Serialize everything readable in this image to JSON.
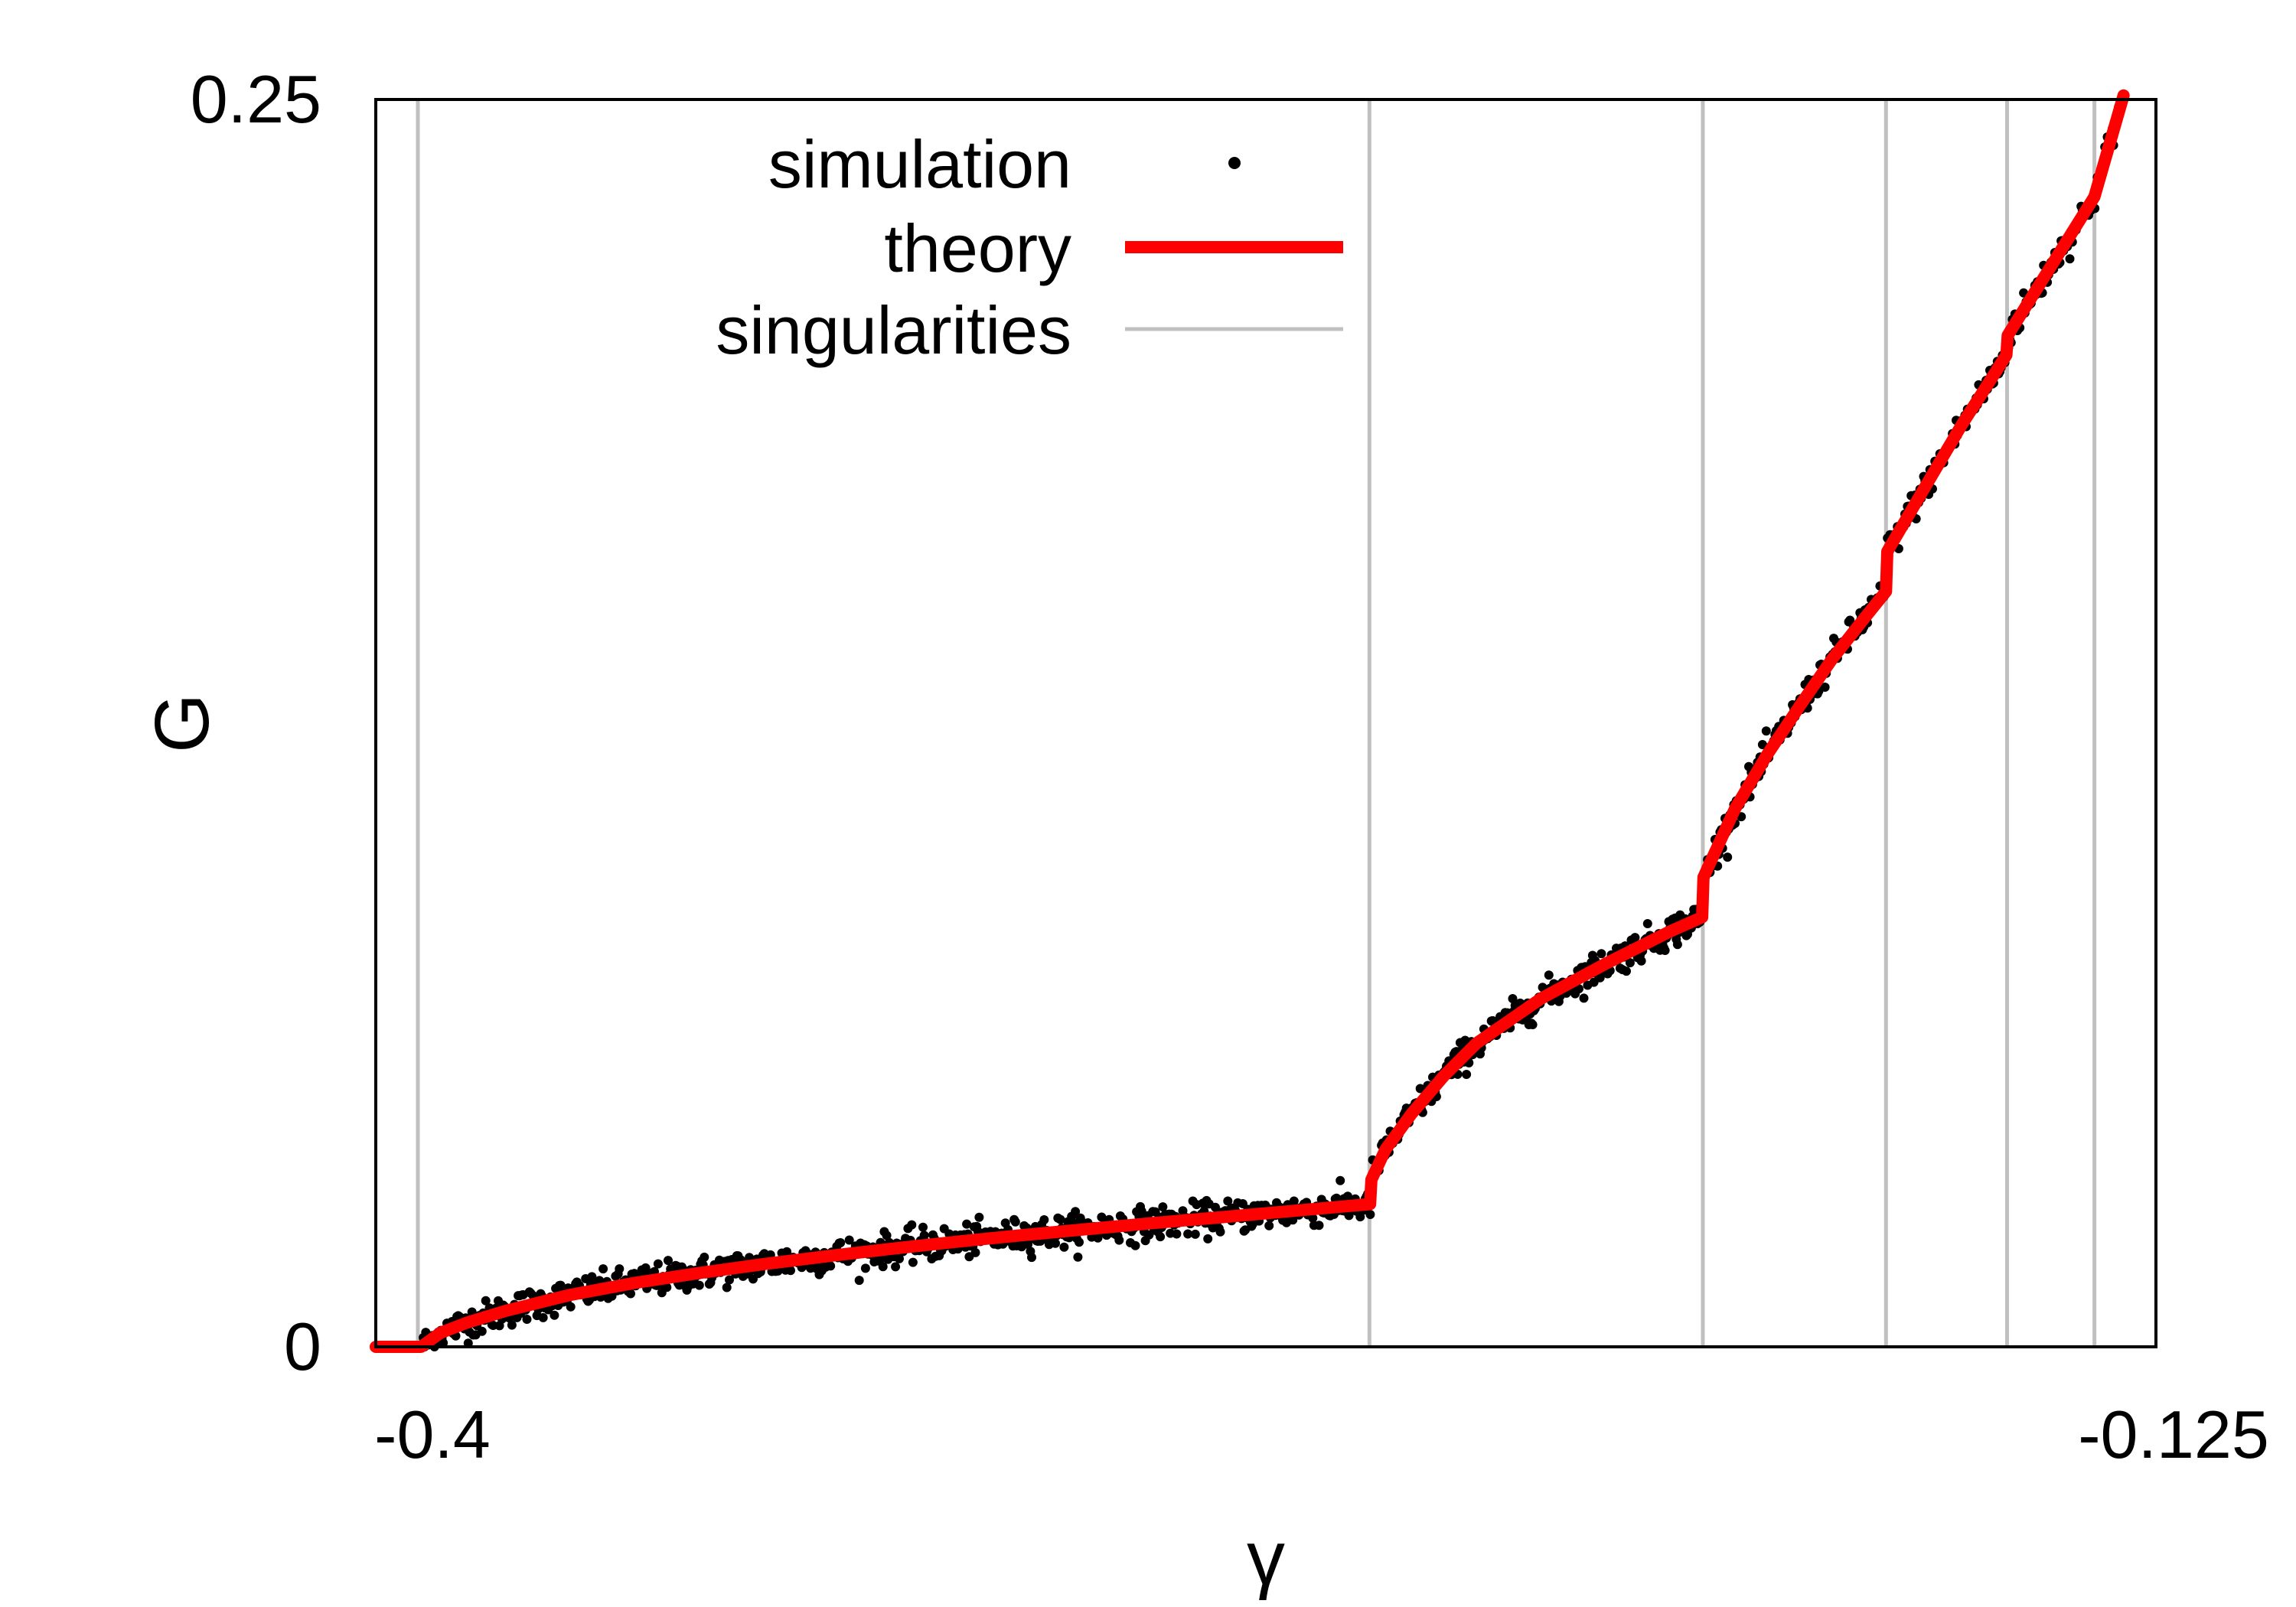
{
  "chart_data": {
    "type": "line",
    "xlabel": "γ",
    "ylabel": "G",
    "xlim": [
      -0.4,
      -0.125
    ],
    "ylim": [
      0,
      0.25
    ],
    "x_ticks": [
      {
        "value": -0.4,
        "label": "-0.4"
      },
      {
        "value": -0.125,
        "label": "-0.125"
      }
    ],
    "y_ticks": [
      {
        "value": 0,
        "label": "0"
      },
      {
        "value": 0.25,
        "label": "0.25"
      }
    ],
    "grid": false,
    "legend_position": "top-center",
    "series": [
      {
        "name": "simulation",
        "style": "points",
        "color": "#000000",
        "noise_sd": 0.0016
      },
      {
        "name": "theory",
        "style": "line",
        "color": "#ff0000",
        "x": [
          -0.4,
          -0.394,
          -0.393,
          -0.39,
          -0.386,
          -0.38,
          -0.37,
          -0.36,
          -0.35,
          -0.34,
          -0.33,
          -0.32,
          -0.31,
          -0.3,
          -0.29,
          -0.28,
          -0.27,
          -0.2464,
          -0.2462,
          -0.244,
          -0.24,
          -0.235,
          -0.23,
          -0.22,
          -0.21,
          -0.2,
          -0.1951,
          -0.1949,
          -0.19,
          -0.185,
          -0.18,
          -0.175,
          -0.17,
          -0.1667,
          -0.1665,
          -0.16,
          -0.155,
          -0.15,
          -0.1481,
          -0.1479,
          -0.14,
          -0.1345,
          -0.13
        ],
        "values": [
          0,
          0,
          0,
          0.0028,
          0.0048,
          0.0072,
          0.0104,
          0.0128,
          0.0148,
          0.0166,
          0.0182,
          0.0197,
          0.0211,
          0.0224,
          0.0236,
          0.0248,
          0.0259,
          0.0286,
          0.0335,
          0.0396,
          0.0467,
          0.0543,
          0.0608,
          0.0698,
          0.0768,
          0.0833,
          0.0861,
          0.0941,
          0.1079,
          0.1188,
          0.1285,
          0.1379,
          0.1461,
          0.1514,
          0.1594,
          0.1738,
          0.1848,
          0.1949,
          0.1988,
          0.2027,
          0.2191,
          0.2305,
          0.2508
        ]
      },
      {
        "name": "singularities",
        "style": "vline",
        "color": "#c0c0c0",
        "x": [
          -0.3935,
          -0.2465,
          -0.195,
          -0.1667,
          -0.148,
          -0.1345
        ]
      }
    ]
  }
}
